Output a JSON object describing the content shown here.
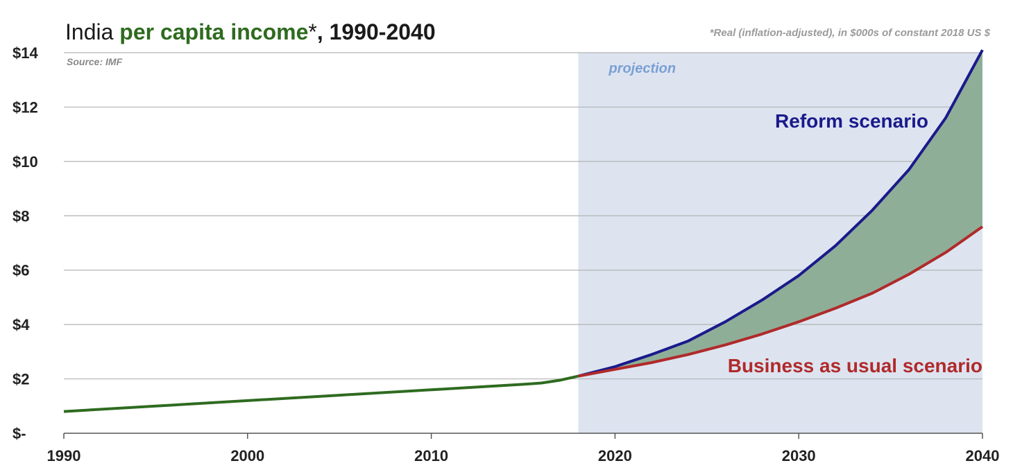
{
  "colors": {
    "history": "#2e6b1f",
    "reform": "#1a1a8c",
    "business": "#b02a2a",
    "gap_fill": "#8fae98",
    "projection_band": "#dde4f0",
    "projection_text": "#7aa0d4",
    "grid": "#b3b3b3",
    "title_dark": "#1a1a1a",
    "title_green": "#2e6b1f"
  },
  "chart_data": {
    "type": "line",
    "title_parts": [
      "India ",
      "per capita income",
      "*",
      ", 1990-2040"
    ],
    "title": "India per capita income*, 1990-2040",
    "note": "*Real (inflation-adjusted), in $000s of constant  2018 US $",
    "source": "Source: IMF",
    "projection_label": "projection",
    "projection_start": 2018,
    "xlim": [
      1990,
      2040
    ],
    "ylim": [
      0,
      14
    ],
    "x_ticks": [
      "1990",
      "2000",
      "2010",
      "2020",
      "2030",
      "2040"
    ],
    "y_ticks": [
      "$-",
      "$2",
      "$4",
      "$6",
      "$8",
      "$10",
      "$12",
      "$14"
    ],
    "grid": true,
    "series": [
      {
        "key": "history",
        "x": [
          1990,
          1995,
          2000,
          2005,
          2010,
          2015,
          2016,
          2017,
          2018
        ],
        "y": [
          0.8,
          1.0,
          1.2,
          1.4,
          1.6,
          1.8,
          1.85,
          1.95,
          2.1
        ]
      },
      {
        "name": "Reform scenario",
        "key": "reform",
        "x": [
          2018,
          2020,
          2022,
          2024,
          2026,
          2028,
          2030,
          2032,
          2034,
          2036,
          2038,
          2040
        ],
        "y": [
          2.1,
          2.45,
          2.9,
          3.4,
          4.1,
          4.9,
          5.8,
          6.9,
          8.2,
          9.7,
          11.6,
          14.1
        ]
      },
      {
        "name": "Business as usual scenario",
        "key": "business",
        "x": [
          2018,
          2020,
          2022,
          2024,
          2026,
          2028,
          2030,
          2032,
          2034,
          2036,
          2038,
          2040
        ],
        "y": [
          2.1,
          2.35,
          2.6,
          2.9,
          3.25,
          3.65,
          4.1,
          4.6,
          5.15,
          5.85,
          6.65,
          7.6
        ]
      }
    ]
  }
}
